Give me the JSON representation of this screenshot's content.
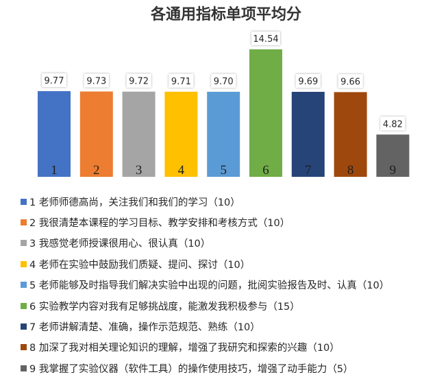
{
  "chart_data": {
    "type": "bar",
    "title": "各通用指标单项平均分",
    "categories": [
      "1",
      "2",
      "3",
      "4",
      "5",
      "6",
      "7",
      "8",
      "9"
    ],
    "values": [
      9.77,
      9.73,
      9.72,
      9.71,
      9.7,
      14.54,
      9.69,
      9.66,
      4.82
    ],
    "value_labels": [
      "9.77",
      "9.73",
      "9.72",
      "9.71",
      "9.70",
      "14.54",
      "9.69",
      "9.66",
      "4.82"
    ],
    "colors": [
      "#4472C4",
      "#ED7D31",
      "#A5A5A5",
      "#FFC000",
      "#5B9BD5",
      "#70AD47",
      "#264478",
      "#9E480E",
      "#636363"
    ],
    "ylim": [
      0,
      14.54
    ],
    "grid": false,
    "legend_position": "bottom",
    "legend": [
      "1 老师师德高尚，关注我们和我们的学习（10）",
      "2 我很清楚本课程的学习目标、教学安排和考核方式（10）",
      "3 我感觉老师授课很用心、很认真（10）",
      "4 老师在实验中鼓励我们质疑、提问、探讨（10）",
      "5 老师能够及时指导我们解决实验中出现的问题，批阅实验报告及时、认真（10）",
      "6 实验教学内容对我有足够挑战度，能激发我积极参与（15）",
      "7 老师讲解清楚、准确，操作示范规范、熟练（10）",
      "8 加深了我对相关理论知识的理解，增强了我研究和探索的兴趣（10）",
      "9 我掌握了实验仪器（软件工具）的操作使用技巧，增强了动手能力（5）"
    ]
  }
}
